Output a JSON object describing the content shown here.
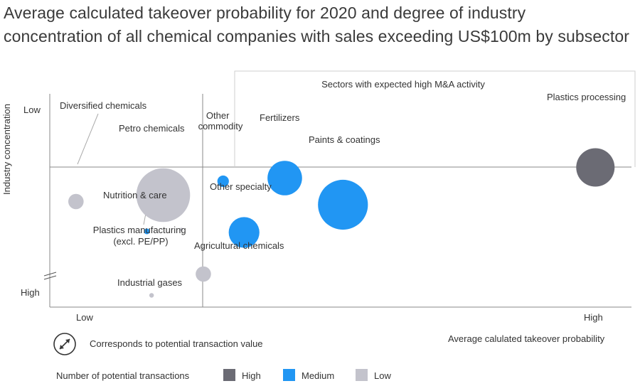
{
  "title": "Average calculated takeover probability for 2020 and degree of industry concentration of all chemical companies with sales exceeding US$100m by subsector",
  "colors": {
    "High": "#6b6b74",
    "Medium": "#2196f3",
    "Low": "#c3c3cc",
    "axis": "#888888"
  },
  "chart_data": {
    "type": "scatter",
    "title": "Average calculated takeover probability for 2020 and degree of industry concentration of all chemical companies with sales exceeding US$100m by subsector",
    "xlabel": "Average calulated takeover probability",
    "ylabel": "Industry concentration",
    "x_ticks": [
      "Low",
      "High"
    ],
    "y_ticks": [
      "Low",
      "High"
    ],
    "xlim": [
      0,
      100
    ],
    "ylim": [
      0,
      100
    ],
    "highlight_region_label": "Sectors with expected high M&A activity",
    "size_legend": "Corresponds to potential transaction value",
    "color_legend_title": "Number of potential transactions",
    "color_legend": [
      "High",
      "Medium",
      "Low"
    ],
    "points": [
      {
        "label": "Diversified chemicals",
        "x": 4.5,
        "y": 49.5,
        "size": 4,
        "transactions": "Low"
      },
      {
        "label": "Petro chemicals",
        "x": 19.5,
        "y": 52.5,
        "size": 14,
        "transactions": "Low"
      },
      {
        "label": "Other commodity",
        "x": 29.8,
        "y": 59,
        "size": 3,
        "transactions": "Medium"
      },
      {
        "label": "Fertilizers",
        "x": 40.4,
        "y": 60.5,
        "size": 9,
        "transactions": "Medium"
      },
      {
        "label": "Paints & coatings",
        "x": 50.4,
        "y": 48,
        "size": 13,
        "transactions": "Medium"
      },
      {
        "label": "Plastics processing",
        "x": 93.8,
        "y": 65.5,
        "size": 10,
        "transactions": "High"
      },
      {
        "label": "Nutrition & care",
        "x": 22.6,
        "y": 36.5,
        "size": 0.8,
        "transactions": "Low"
      },
      {
        "label": "Plastics manufacturing (excl. PE/PP)",
        "x": 16.7,
        "y": 35.5,
        "size": 1.5,
        "transactions": "Medium"
      },
      {
        "label": "Other specialty",
        "x": 33.4,
        "y": 35,
        "size": 8,
        "transactions": "Medium"
      },
      {
        "label": "Agricultural chemicals",
        "x": 26.4,
        "y": 15.5,
        "size": 4,
        "transactions": "Low"
      },
      {
        "label": "Industrial gases",
        "x": 17.5,
        "y": 5.5,
        "size": 1.2,
        "transactions": "Low"
      }
    ]
  }
}
